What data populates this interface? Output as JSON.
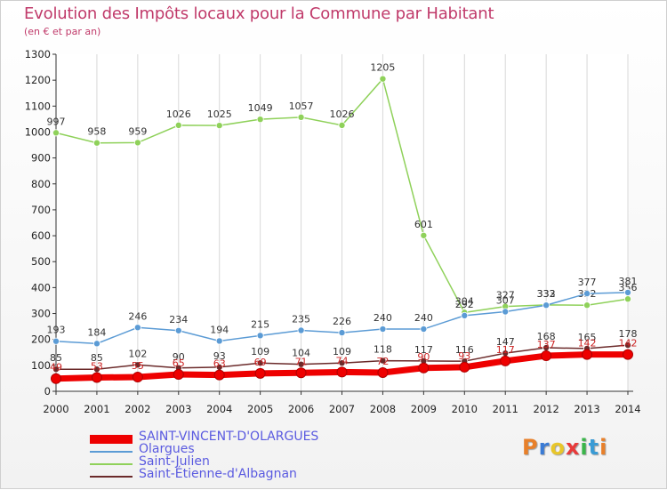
{
  "title": "Evolution des Impôts locaux pour la Commune par Habitant",
  "subtitle": "(en € et par an)",
  "logo": {
    "text": "Proxiti",
    "colors": [
      "#e8802a",
      "#3a7bd5",
      "#e8c62a",
      "#e83a3a",
      "#3ab54a",
      "#3a9bd5",
      "#e8802a"
    ]
  },
  "chart_data": {
    "type": "line",
    "title": "Evolution des Impôts locaux pour la Commune par Habitant",
    "subtitle": "(en € et par an)",
    "xlabel": "",
    "ylabel": "",
    "ylim": [
      0,
      1300
    ],
    "yticks": [
      0,
      100,
      200,
      300,
      400,
      500,
      600,
      700,
      800,
      900,
      1000,
      1100,
      1200,
      1300
    ],
    "categories": [
      "2000",
      "2001",
      "2002",
      "2003",
      "2004",
      "2005",
      "2006",
      "2007",
      "2008",
      "2009",
      "2010",
      "2011",
      "2012",
      "2013",
      "2014"
    ],
    "grid": "vertical",
    "series": [
      {
        "name": "Saint-Julien",
        "color": "#8fd15a",
        "width": 1.5,
        "values": [
          997,
          958,
          959,
          1026,
          1025,
          1049,
          1057,
          1026,
          1205,
          601,
          304,
          327,
          333,
          332,
          356
        ]
      },
      {
        "name": "Olargues",
        "color": "#5b9bd5",
        "width": 1.5,
        "values": [
          193,
          184,
          246,
          234,
          194,
          215,
          235,
          226,
          240,
          240,
          292,
          307,
          332,
          377,
          381
        ]
      },
      {
        "name": "Saint-Étienne-d'Albagnan",
        "color": "#6b2a2a",
        "width": 1.5,
        "values": [
          85,
          85,
          102,
          90,
          93,
          109,
          104,
          109,
          118,
          117,
          116,
          147,
          168,
          165,
          178
        ]
      },
      {
        "name": "SAINT-VINCENT-D'OLARGUES",
        "color": "#ee0000",
        "width": 7,
        "values": [
          49,
          53,
          55,
          65,
          63,
          69,
          71,
          74,
          72,
          90,
          93,
          117,
          137,
          142,
          142
        ]
      }
    ],
    "legend": [
      {
        "name": "SAINT-VINCENT-D'OLARGUES",
        "color": "#ee0000",
        "thickness": "thick"
      },
      {
        "name": "Olargues",
        "color": "#5b9bd5",
        "thickness": "thin"
      },
      {
        "name": "Saint-Julien",
        "color": "#8fd15a",
        "thickness": "thin"
      },
      {
        "name": "Saint-Étienne-d'Albagnan",
        "color": "#6b2a2a",
        "thickness": "thin"
      }
    ]
  }
}
